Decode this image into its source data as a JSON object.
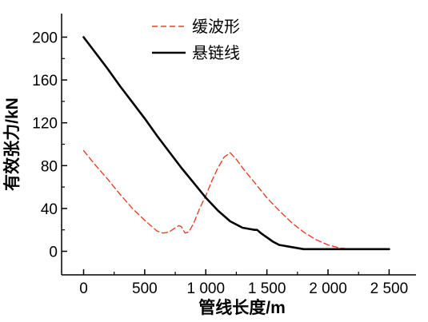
{
  "chart_data": {
    "type": "line",
    "title": "",
    "xlabel": "管线长度/m",
    "ylabel": "有效张力/kN",
    "xlim": [
      -180,
      2720
    ],
    "ylim": [
      -22,
      222
    ],
    "x_ticks": [
      0,
      500,
      1000,
      1500,
      2000,
      2500
    ],
    "x_tick_labels": [
      "0",
      "500",
      "1 000",
      "1 500",
      "2 000",
      "2 500"
    ],
    "y_ticks": [
      0,
      40,
      80,
      120,
      160,
      200
    ],
    "y_tick_labels": [
      "0",
      "40",
      "80",
      "120",
      "160",
      "200"
    ],
    "grid": false,
    "legend_position": "top-right",
    "series": [
      {
        "name": "缓波形",
        "color": "#e8402a",
        "dash": "dashed",
        "x": [
          0,
          100,
          200,
          300,
          400,
          500,
          550,
          600,
          650,
          700,
          750,
          780,
          800,
          830,
          860,
          900,
          950,
          1000,
          1050,
          1100,
          1150,
          1200,
          1250,
          1300,
          1400,
          1500,
          1600,
          1700,
          1800,
          1900,
          2000,
          2100,
          2200,
          2300,
          2400,
          2500
        ],
        "y": [
          94,
          80,
          67,
          53,
          40,
          29,
          24,
          19,
          17,
          18,
          22,
          24,
          23,
          17,
          18,
          26,
          40,
          52,
          66,
          78,
          88,
          92,
          86,
          78,
          64,
          50,
          38,
          27,
          18,
          11,
          6,
          3,
          2,
          2,
          2,
          2
        ]
      },
      {
        "name": "悬链线",
        "color": "#000000",
        "dash": "solid",
        "x": [
          0,
          100,
          200,
          300,
          400,
          500,
          600,
          700,
          800,
          900,
          1000,
          1100,
          1200,
          1300,
          1350,
          1400,
          1420,
          1450,
          1500,
          1550,
          1600,
          1700,
          1800,
          1900,
          2000,
          2200,
          2400,
          2500
        ],
        "y": [
          200,
          185,
          170,
          154,
          139,
          124,
          108,
          93,
          78,
          64,
          50,
          38,
          28,
          22,
          21,
          20,
          20,
          17,
          13,
          9,
          6,
          4,
          2,
          2,
          2,
          2,
          2,
          2
        ]
      }
    ]
  }
}
